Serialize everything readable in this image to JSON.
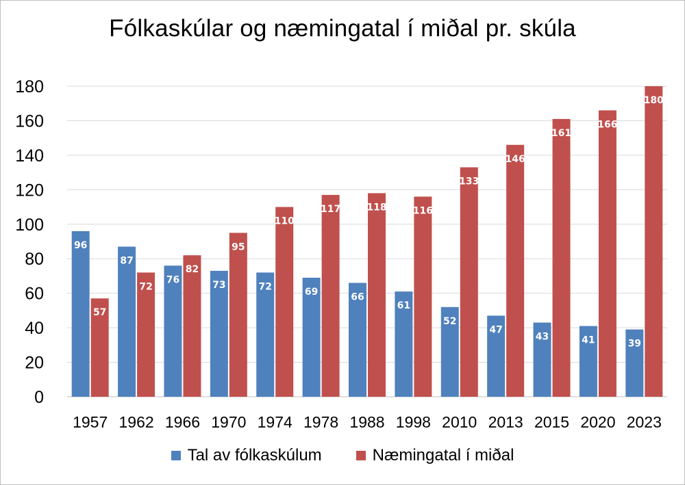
{
  "chart_data": {
    "type": "bar",
    "title": "Fólkaskúlar og næmingatal í miðal pr. skúla",
    "categories": [
      "1957",
      "1962",
      "1966",
      "1970",
      "1974",
      "1978",
      "1988",
      "1998",
      "2010",
      "2013",
      "2015",
      "2020",
      "2023"
    ],
    "series": [
      {
        "name": "Tal av fólkaskúlum",
        "color": "#4f81bd",
        "values": [
          96,
          87,
          76,
          73,
          72,
          69,
          66,
          61,
          52,
          47,
          43,
          41,
          39
        ]
      },
      {
        "name": "Næmingatal í miðal",
        "color": "#c0504d",
        "values": [
          57,
          72,
          82,
          95,
          110,
          117,
          118,
          116,
          133,
          146,
          161,
          166,
          180
        ]
      }
    ],
    "ylim": [
      0,
      180
    ],
    "yticks": [
      0,
      20,
      40,
      60,
      80,
      100,
      120,
      140,
      160,
      180
    ],
    "grid": true,
    "legend_position": "bottom",
    "data_labels": true
  }
}
